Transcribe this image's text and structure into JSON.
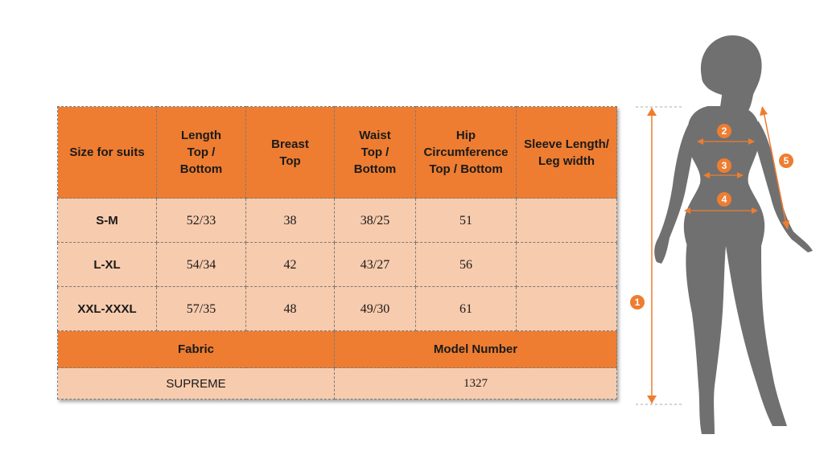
{
  "table": {
    "headers": [
      "Size for suits",
      "Length Top / Bottom",
      "Breast Top",
      "Waist Top / Bottom",
      "Hip Circumference Top / Bottom",
      "Sleeve Length/ Leg width"
    ],
    "rows": [
      {
        "size": "S-M",
        "length": "52/33",
        "breast": "38",
        "waist": "38/25",
        "hip": "51",
        "sleeve": ""
      },
      {
        "size": "L-XL",
        "length": "54/34",
        "breast": "42",
        "waist": "43/27",
        "hip": "56",
        "sleeve": ""
      },
      {
        "size": "XXL-XXXL",
        "length": "57/35",
        "breast": "48",
        "waist": "49/30",
        "hip": "61",
        "sleeve": ""
      }
    ],
    "fabric_label": "Fabric",
    "model_label": "Model Number",
    "fabric_value": "SUPREME",
    "model_value": "1327"
  },
  "figure": {
    "markers": [
      "1",
      "2",
      "3",
      "4",
      "5"
    ]
  },
  "colors": {
    "header_orange": "#ee7d31",
    "cell_peach": "#f7cbad",
    "silhouette_gray": "#707070",
    "arrow_orange": "#ee7d31"
  }
}
